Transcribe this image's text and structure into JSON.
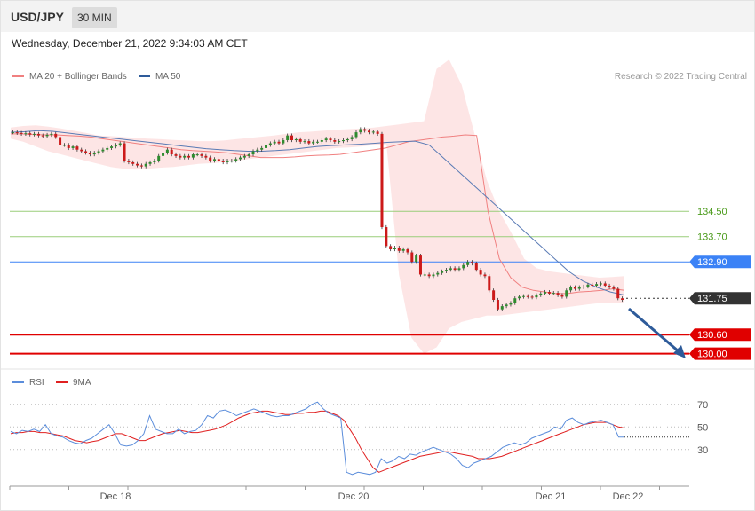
{
  "header": {
    "symbol": "USD/JPY",
    "timeframe": "30 MIN",
    "datetime": "Wednesday, December 21, 2022 9:34:03 AM CET"
  },
  "legend": {
    "ma20": {
      "label": "MA 20 + Bollinger Bands",
      "color": "#f08080"
    },
    "ma50": {
      "label": "MA 50",
      "color": "#2e5b9a"
    },
    "rsi": {
      "label": "RSI",
      "color": "#5b8ddb"
    },
    "ma9": {
      "label": "9MA",
      "color": "#e02020"
    }
  },
  "research": "Research © 2022 Trading Central",
  "chart_data": {
    "type": "line",
    "x_ticks": [
      "Dec 18",
      "Dec 20",
      "Dec 21",
      "Dec 22"
    ],
    "levels": [
      {
        "value": 134.5,
        "label": "134.50",
        "kind": "resistance-light",
        "color": "#9acd7a",
        "text_color": "#4a9a1a"
      },
      {
        "value": 133.7,
        "label": "133.70",
        "kind": "resistance-light",
        "color": "#9acd7a",
        "text_color": "#4a9a1a"
      },
      {
        "value": 132.9,
        "label": "132.90",
        "kind": "pivot",
        "color": "#3b82f6"
      },
      {
        "value": 131.75,
        "label": "131.75",
        "kind": "last",
        "color": "#333333"
      },
      {
        "value": 130.6,
        "label": "130.60",
        "kind": "support",
        "color": "#e00000"
      },
      {
        "value": 130.0,
        "label": "130.00",
        "kind": "support",
        "color": "#e00000"
      }
    ],
    "close": [
      137.0,
      136.98,
      136.95,
      136.97,
      136.93,
      136.95,
      136.9,
      136.88,
      136.92,
      136.95,
      136.85,
      136.6,
      136.6,
      136.5,
      136.55,
      136.45,
      136.4,
      136.35,
      136.3,
      136.35,
      136.4,
      136.45,
      136.5,
      136.55,
      136.6,
      136.65,
      136.1,
      136.05,
      136.0,
      135.95,
      135.92,
      136.0,
      136.05,
      136.1,
      136.25,
      136.35,
      136.45,
      136.3,
      136.25,
      136.2,
      136.25,
      136.2,
      136.3,
      136.3,
      136.25,
      136.2,
      136.1,
      136.15,
      136.1,
      136.05,
      136.1,
      136.1,
      136.15,
      136.2,
      136.25,
      136.3,
      136.4,
      136.45,
      136.5,
      136.6,
      136.65,
      136.7,
      136.65,
      136.75,
      136.9,
      136.75,
      136.78,
      136.7,
      136.72,
      136.65,
      136.7,
      136.7,
      136.75,
      136.8,
      136.75,
      136.7,
      136.72,
      136.75,
      136.78,
      136.85,
      137.0,
      137.1,
      137.05,
      137.0,
      137.02,
      136.95,
      134.0,
      133.4,
      133.3,
      133.35,
      133.25,
      133.3,
      133.2,
      132.9,
      133.1,
      132.5,
      132.5,
      132.45,
      132.5,
      132.55,
      132.6,
      132.65,
      132.7,
      132.65,
      132.7,
      132.8,
      132.9,
      132.85,
      132.65,
      132.5,
      132.45,
      132.0,
      131.7,
      131.4,
      131.5,
      131.55,
      131.6,
      131.75,
      131.8,
      131.82,
      131.8,
      131.78,
      131.85,
      131.9,
      131.95,
      131.9,
      131.92,
      131.85,
      131.8,
      132.0,
      132.1,
      132.05,
      132.1,
      132.12,
      132.18,
      132.15,
      132.2,
      132.22,
      132.15,
      132.1,
      132.05,
      131.75,
      131.7
    ],
    "ma20": [
      136.95,
      136.95,
      136.93,
      136.92,
      136.92,
      136.9,
      136.88,
      136.85,
      136.8,
      136.75,
      136.7,
      136.65,
      136.6,
      136.55,
      136.5,
      136.45,
      136.42,
      136.4,
      136.38,
      136.35,
      136.3,
      136.25,
      136.2,
      136.2,
      136.2,
      136.22,
      136.25,
      136.27,
      136.28,
      136.3,
      136.35,
      136.4,
      136.45,
      136.5,
      136.6,
      136.7,
      136.75,
      136.8,
      136.85,
      136.88,
      136.92,
      136.9,
      134.5,
      133.0,
      132.4,
      132.1,
      132.0,
      131.95,
      131.9,
      131.9,
      131.95,
      131.97,
      132.0,
      132.05,
      132.0
    ],
    "ma50": [
      137.0,
      137.02,
      137.05,
      137.03,
      136.98,
      136.93,
      136.88,
      136.83,
      136.78,
      136.73,
      136.68,
      136.63,
      136.58,
      136.53,
      136.48,
      136.45,
      136.42,
      136.4,
      136.4,
      136.42,
      136.45,
      136.5,
      136.55,
      136.58,
      136.6,
      136.62,
      136.65,
      136.68,
      136.7,
      136.72,
      136.6,
      136.2,
      135.8,
      135.4,
      135.0,
      134.6,
      134.2,
      133.8,
      133.4,
      133.0,
      132.6,
      132.3,
      132.1,
      131.95,
      131.85
    ],
    "bb_upper": [
      137.15,
      137.2,
      137.22,
      137.18,
      137.12,
      137.05,
      136.98,
      136.9,
      136.88,
      136.85,
      136.82,
      136.8,
      136.78,
      136.76,
      136.74,
      136.72,
      136.72,
      136.74,
      136.78,
      136.82,
      136.86,
      136.9,
      136.95,
      137.0,
      137.02,
      137.05,
      137.08,
      137.1,
      137.12,
      137.15,
      137.2,
      137.25,
      137.3,
      137.35,
      139.0,
      139.3,
      138.5,
      137.0,
      135.5,
      134.5,
      133.8,
      133.0,
      132.7,
      132.6,
      132.55,
      132.5,
      132.45,
      132.4,
      132.42,
      132.45
    ],
    "bb_lower": [
      136.8,
      136.7,
      136.55,
      136.4,
      136.3,
      136.2,
      136.1,
      136.0,
      135.9,
      135.85,
      135.82,
      135.85,
      135.88,
      135.9,
      135.95,
      136.0,
      136.02,
      136.05,
      136.1,
      136.15,
      136.2,
      136.25,
      136.3,
      136.35,
      136.4,
      136.45,
      136.5,
      136.52,
      136.55,
      136.6,
      136.62,
      132.5,
      130.5,
      130.0,
      130.2,
      130.8,
      131.0,
      131.1,
      131.2,
      131.2,
      131.25,
      131.3,
      131.35,
      131.4,
      131.45,
      131.5,
      131.55,
      131.6,
      131.6,
      131.62
    ],
    "y_range": [
      129.82,
      139.5
    ],
    "rsi": {
      "ticks": [
        70,
        50,
        30
      ],
      "last": 41,
      "rsi": [
        46,
        44,
        47,
        46,
        48,
        46,
        52,
        44,
        42,
        41,
        38,
        36,
        35,
        38,
        40,
        44,
        48,
        52,
        44,
        34,
        33,
        34,
        38,
        44,
        60,
        48,
        46,
        44,
        44,
        48,
        44,
        46,
        47,
        52,
        60,
        58,
        64,
        65,
        63,
        60,
        62,
        64,
        66,
        64,
        62,
        60,
        59,
        60,
        60,
        62,
        64,
        66,
        70,
        72,
        66,
        62,
        60,
        58,
        10,
        8,
        10,
        9,
        8,
        10,
        22,
        18,
        20,
        24,
        22,
        26,
        25,
        28,
        30,
        32,
        30,
        28,
        26,
        22,
        16,
        14,
        18,
        20,
        22,
        24,
        28,
        32,
        34,
        36,
        34,
        36,
        40,
        42,
        44,
        46,
        50,
        48,
        56,
        58,
        54,
        52,
        54,
        55,
        56,
        54,
        52,
        41,
        41
      ],
      "ma9": [
        44,
        45,
        45,
        46,
        46,
        45,
        45,
        44,
        43,
        42,
        40,
        38,
        37,
        36,
        37,
        38,
        40,
        42,
        44,
        44,
        42,
        40,
        38,
        38,
        40,
        42,
        44,
        45,
        46,
        47,
        46,
        45,
        45,
        46,
        47,
        48,
        50,
        52,
        55,
        58,
        60,
        62,
        63,
        64,
        64,
        63,
        62,
        61,
        61,
        62,
        62,
        63,
        63,
        64,
        64,
        62,
        60,
        56,
        48,
        40,
        30,
        22,
        14,
        10,
        12,
        14,
        16,
        18,
        20,
        22,
        24,
        25,
        26,
        27,
        28,
        28,
        27,
        26,
        25,
        24,
        22,
        22,
        22,
        23,
        24,
        26,
        28,
        30,
        32,
        34,
        36,
        38,
        40,
        42,
        44,
        46,
        48,
        50,
        52,
        53,
        54,
        54,
        54,
        52,
        50,
        49
      ],
      "range": [
        0,
        80
      ]
    }
  }
}
